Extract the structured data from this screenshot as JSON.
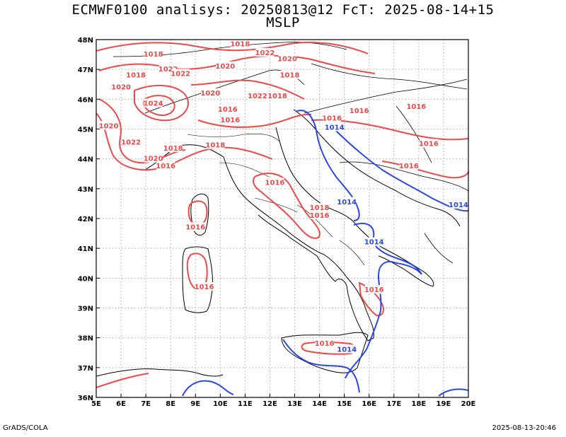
{
  "header": {
    "title_line1": "ECMWF0100 analisys: 20250813@12 FcT: 2025-08-14+15",
    "title_line2": "MSLP"
  },
  "footer": {
    "credit": "GrADS/COLA",
    "timestamp": "2025-08-13-20:46"
  },
  "map": {
    "lon_ticks": [
      "5E",
      "6E",
      "7E",
      "8E",
      "9E",
      "10E",
      "11E",
      "12E",
      "13E",
      "14E",
      "15E",
      "16E",
      "17E",
      "18E",
      "19E",
      "20E"
    ],
    "lat_ticks": [
      "48N",
      "47N",
      "46N",
      "45N",
      "44N",
      "43N",
      "42N",
      "41N",
      "40N",
      "39N",
      "38N",
      "37N",
      "36N"
    ],
    "lon_range": [
      5,
      20
    ],
    "lat_range": [
      36,
      48
    ],
    "grid": "dotted",
    "colors": {
      "high_isobar": "#f04848",
      "low_isobar": "#2a46e8",
      "coastline": "#000000",
      "grid": "#aaaaaa"
    }
  },
  "isobar_labels": [
    {
      "text": "1018",
      "color": "red",
      "lon": 7.3,
      "lat": 47.5
    },
    {
      "text": "1018",
      "color": "red",
      "lon": 10.8,
      "lat": 47.85
    },
    {
      "text": "1022",
      "color": "red",
      "lon": 11.8,
      "lat": 47.55
    },
    {
      "text": "1020",
      "color": "red",
      "lon": 12.7,
      "lat": 47.35
    },
    {
      "text": "1022",
      "color": "red",
      "lon": 7.9,
      "lat": 47.0
    },
    {
      "text": "1022",
      "color": "red",
      "lon": 8.4,
      "lat": 46.85
    },
    {
      "text": "1018",
      "color": "red",
      "lon": 6.6,
      "lat": 46.8
    },
    {
      "text": "1020",
      "color": "red",
      "lon": 6.0,
      "lat": 46.4
    },
    {
      "text": "1020",
      "color": "red",
      "lon": 10.2,
      "lat": 47.1
    },
    {
      "text": "1018",
      "color": "red",
      "lon": 12.8,
      "lat": 46.8
    },
    {
      "text": "1022",
      "color": "red",
      "lon": 11.5,
      "lat": 46.1
    },
    {
      "text": "1018",
      "color": "red",
      "lon": 12.3,
      "lat": 46.1
    },
    {
      "text": "1020",
      "color": "red",
      "lon": 9.6,
      "lat": 46.2
    },
    {
      "text": "1024",
      "color": "red",
      "lon": 7.3,
      "lat": 45.85
    },
    {
      "text": "1016",
      "color": "red",
      "lon": 10.3,
      "lat": 45.65
    },
    {
      "text": "1016",
      "color": "red",
      "lon": 10.4,
      "lat": 45.3
    },
    {
      "text": "1016",
      "color": "red",
      "lon": 14.5,
      "lat": 45.35
    },
    {
      "text": "1016",
      "color": "red",
      "lon": 15.6,
      "lat": 45.6
    },
    {
      "text": "1016",
      "color": "red",
      "lon": 17.9,
      "lat": 45.75
    },
    {
      "text": "1020",
      "color": "red",
      "lon": 5.5,
      "lat": 45.1
    },
    {
      "text": "1022",
      "color": "red",
      "lon": 6.4,
      "lat": 44.55
    },
    {
      "text": "1018",
      "color": "red",
      "lon": 8.1,
      "lat": 44.35
    },
    {
      "text": "1018",
      "color": "red",
      "lon": 9.8,
      "lat": 44.45
    },
    {
      "text": "1020",
      "color": "red",
      "lon": 7.3,
      "lat": 44.0
    },
    {
      "text": "1016",
      "color": "red",
      "lon": 7.8,
      "lat": 43.75
    },
    {
      "text": "1016",
      "color": "red",
      "lon": 18.4,
      "lat": 44.5
    },
    {
      "text": "1016",
      "color": "red",
      "lon": 17.6,
      "lat": 43.75
    },
    {
      "text": "1016",
      "color": "red",
      "lon": 12.2,
      "lat": 43.2
    },
    {
      "text": "1018",
      "color": "red",
      "lon": 14.0,
      "lat": 42.35
    },
    {
      "text": "1016",
      "color": "red",
      "lon": 14.0,
      "lat": 42.1
    },
    {
      "text": "1016",
      "color": "red",
      "lon": 9.0,
      "lat": 41.7
    },
    {
      "text": "1016",
      "color": "red",
      "lon": 9.35,
      "lat": 39.7
    },
    {
      "text": "1016",
      "color": "red",
      "lon": 16.2,
      "lat": 39.6
    },
    {
      "text": "1016",
      "color": "red",
      "lon": 14.2,
      "lat": 37.8
    },
    {
      "text": "1014",
      "color": "blue",
      "lon": 14.6,
      "lat": 45.05
    },
    {
      "text": "1014",
      "color": "blue",
      "lon": 15.1,
      "lat": 42.55
    },
    {
      "text": "1014",
      "color": "blue",
      "lon": 19.6,
      "lat": 42.45
    },
    {
      "text": "1014",
      "color": "blue",
      "lon": 16.2,
      "lat": 41.2
    },
    {
      "text": "1014",
      "color": "blue",
      "lon": 15.1,
      "lat": 37.6
    }
  ]
}
